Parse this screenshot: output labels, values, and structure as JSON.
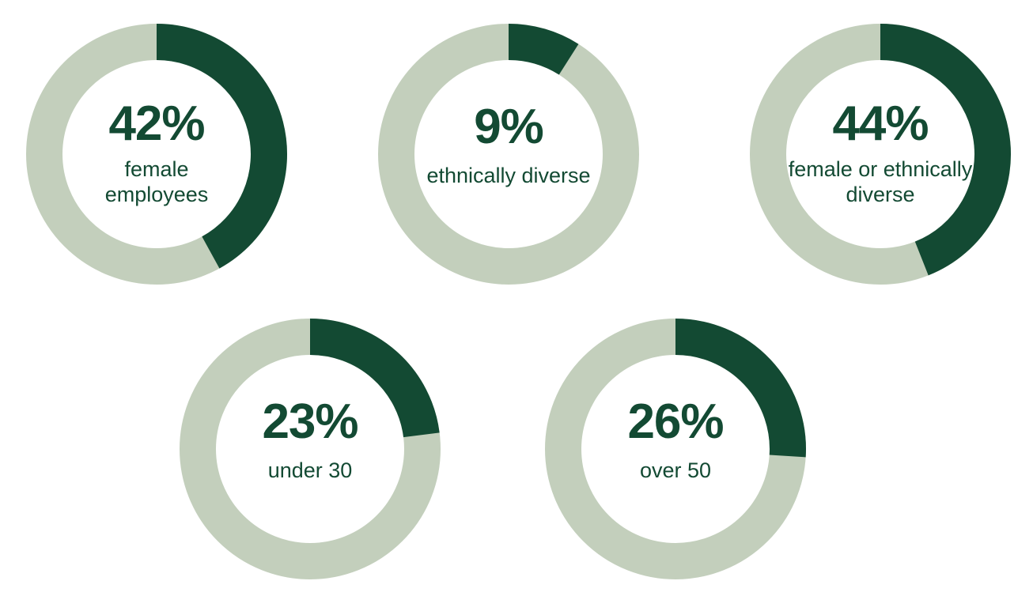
{
  "colors": {
    "filled": "#134a33",
    "track": "#c3cfbc",
    "text": "#134a33"
  },
  "chart_data": [
    {
      "type": "pie",
      "style": "donut",
      "value": 42,
      "label": "42%",
      "caption": [
        "female",
        "employees"
      ]
    },
    {
      "type": "pie",
      "style": "donut",
      "value": 9,
      "label": "9%",
      "caption": [
        "ethnically diverse"
      ]
    },
    {
      "type": "pie",
      "style": "donut",
      "value": 44,
      "label": "44%",
      "caption": [
        "female or ethnically",
        "diverse"
      ]
    },
    {
      "type": "pie",
      "style": "donut",
      "value": 23,
      "label": "23%",
      "caption": [
        "under 30"
      ]
    },
    {
      "type": "pie",
      "style": "donut",
      "value": 26,
      "label": "26%",
      "caption": [
        "over 50"
      ]
    }
  ]
}
